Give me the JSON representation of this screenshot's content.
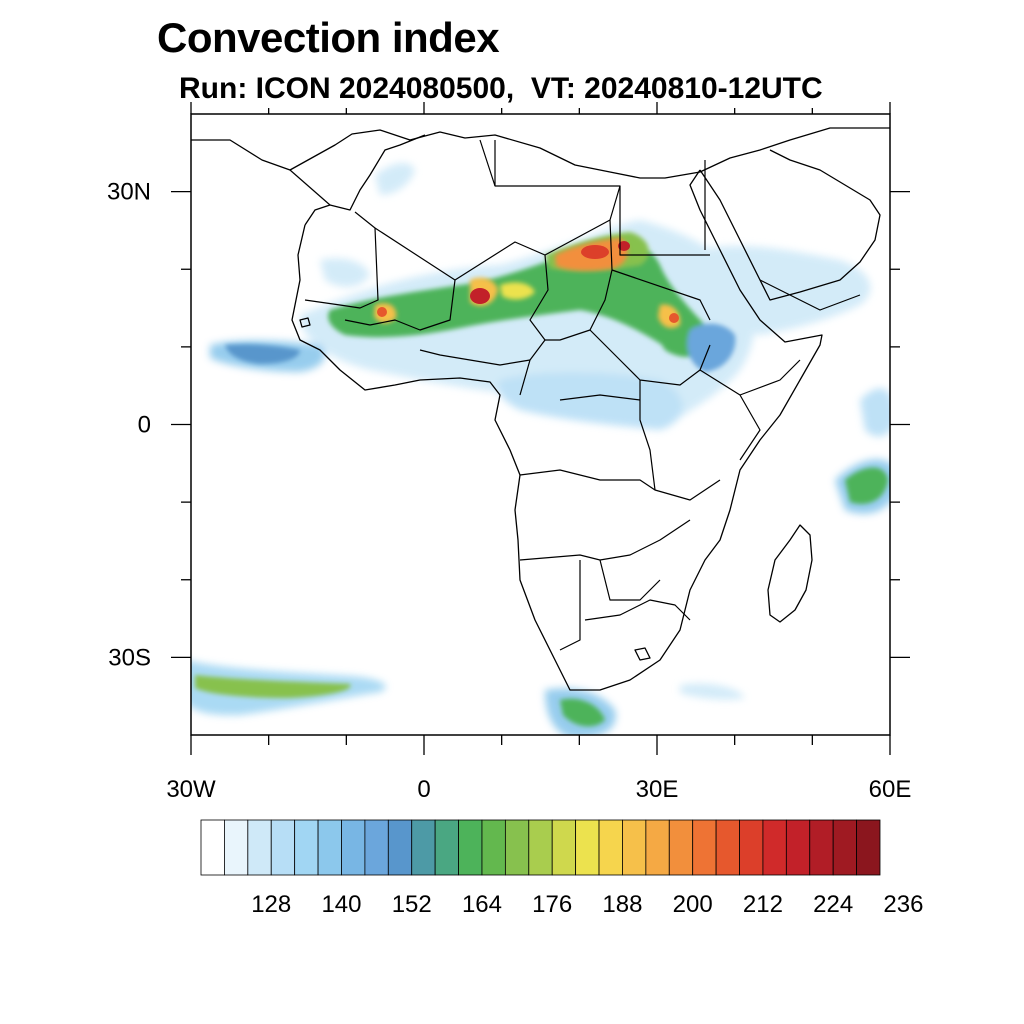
{
  "title": "Convection index",
  "subtitle": "Run: ICON 2024080500,  VT: 20240810-12UTC",
  "map": {
    "extent": {
      "lon": [
        -30,
        60
      ],
      "lat": [
        -40,
        40
      ]
    },
    "lon_ticks": [
      {
        "value": -30,
        "label": "30W"
      },
      {
        "value": 0,
        "label": "0"
      },
      {
        "value": 30,
        "label": "30E"
      },
      {
        "value": 60,
        "label": "60E"
      }
    ],
    "lat_ticks": [
      {
        "value": 30,
        "label": "30N"
      },
      {
        "value": 0,
        "label": "0"
      },
      {
        "value": -30,
        "label": "30S"
      }
    ],
    "minor_lon_ticks": [
      -20,
      -10,
      10,
      20,
      40,
      50
    ],
    "minor_lat_ticks": [
      20,
      10,
      -10,
      -20
    ]
  },
  "colorbar": {
    "colors": [
      "#ffffff",
      "#e9f5fc",
      "#cfe9f8",
      "#b7def6",
      "#a1d6f3",
      "#8cc8ec",
      "#78b6e4",
      "#6ba6dc",
      "#5896cc",
      "#4d9aa6",
      "#4aa782",
      "#4db35a",
      "#63b84e",
      "#87c14e",
      "#a9cd4e",
      "#cfd84d",
      "#ece24e",
      "#f6d54d",
      "#f6c04a",
      "#f5a944",
      "#f28f3c",
      "#ee7334",
      "#e6582d",
      "#dc3f2a",
      "#d02a2a",
      "#c22129",
      "#b11d26",
      "#9f1a22",
      "#8b161e"
    ],
    "labels": [
      "128",
      "140",
      "152",
      "164",
      "176",
      "188",
      "200",
      "212",
      "224",
      "236"
    ]
  }
}
